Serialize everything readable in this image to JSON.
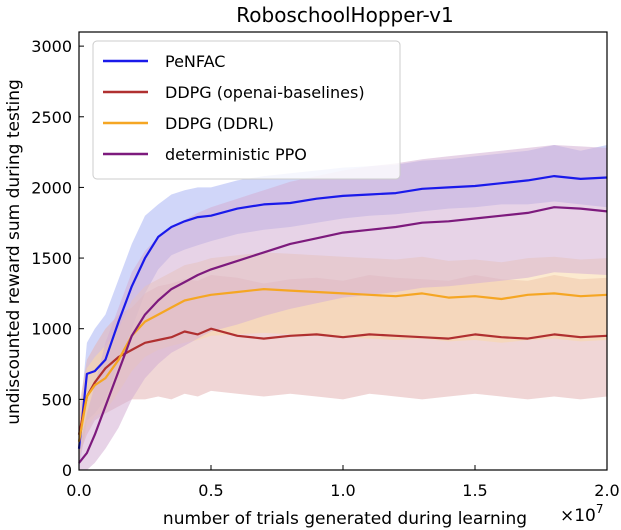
{
  "chart_data": {
    "type": "line",
    "title": "RoboschoolHopper-v1",
    "xlabel": "number of trials generated during learning",
    "ylabel": "undiscounted reward sum during testing",
    "x_multiplier_label": "×10^7",
    "x_multiplier": {
      "base": "×10",
      "exp": "7"
    },
    "xlim": [
      0.0,
      2.0
    ],
    "ylim": [
      0,
      3100
    ],
    "xticks": [
      0.0,
      0.5,
      1.0,
      1.5,
      2.0
    ],
    "xtick_labels": [
      "0.0",
      "0.5",
      "1.0",
      "1.5",
      "2.0"
    ],
    "yticks": [
      0,
      500,
      1000,
      1500,
      2000,
      2500,
      3000
    ],
    "ytick_labels": [
      "0",
      "500",
      "1000",
      "1500",
      "2000",
      "2500",
      "3000"
    ],
    "grid": false,
    "legend_position": "top-left",
    "series": [
      {
        "name": "PeNFAC",
        "color": "#1a1aea",
        "band_color": "#aab4f4",
        "x": [
          0.0,
          0.03,
          0.06,
          0.1,
          0.15,
          0.2,
          0.25,
          0.3,
          0.35,
          0.4,
          0.45,
          0.5,
          0.6,
          0.7,
          0.8,
          0.9,
          1.0,
          1.1,
          1.2,
          1.3,
          1.4,
          1.5,
          1.6,
          1.7,
          1.8,
          1.9,
          2.0
        ],
        "y": [
          150,
          680,
          700,
          780,
          1050,
          1300,
          1500,
          1650,
          1720,
          1760,
          1790,
          1800,
          1850,
          1880,
          1890,
          1920,
          1940,
          1950,
          1960,
          1990,
          2000,
          2010,
          2030,
          2050,
          2080,
          2060,
          2070
        ],
        "lower": [
          0,
          350,
          400,
          500,
          750,
          1000,
          1250,
          1420,
          1520,
          1560,
          1590,
          1620,
          1670,
          1700,
          1720,
          1750,
          1780,
          1800,
          1810,
          1830,
          1850,
          1860,
          1880,
          1880,
          1900,
          1880,
          1860
        ],
        "upper": [
          300,
          900,
          1000,
          1100,
          1350,
          1600,
          1800,
          1880,
          1950,
          1980,
          2000,
          2000,
          2050,
          2080,
          2100,
          2120,
          2140,
          2150,
          2160,
          2190,
          2200,
          2220,
          2240,
          2260,
          2300,
          2260,
          2300
        ]
      },
      {
        "name": "DDPG (openai-baselines)",
        "color": "#b03030",
        "band_color": "#e4b4b4",
        "x": [
          0.0,
          0.03,
          0.06,
          0.1,
          0.15,
          0.2,
          0.25,
          0.3,
          0.35,
          0.4,
          0.45,
          0.5,
          0.6,
          0.7,
          0.8,
          0.9,
          1.0,
          1.1,
          1.2,
          1.3,
          1.4,
          1.5,
          1.6,
          1.7,
          1.8,
          1.9,
          2.0
        ],
        "y": [
          250,
          520,
          620,
          720,
          800,
          850,
          900,
          920,
          940,
          980,
          960,
          1000,
          950,
          930,
          950,
          960,
          940,
          960,
          950,
          940,
          930,
          960,
          940,
          930,
          960,
          940,
          950
        ],
        "lower": [
          100,
          250,
          350,
          400,
          450,
          500,
          500,
          520,
          500,
          540,
          520,
          560,
          540,
          520,
          540,
          520,
          500,
          540,
          520,
          500,
          520,
          540,
          520,
          500,
          520,
          500,
          520
        ],
        "upper": [
          450,
          780,
          880,
          1000,
          1100,
          1150,
          1250,
          1300,
          1320,
          1350,
          1340,
          1380,
          1360,
          1320,
          1350,
          1360,
          1340,
          1380,
          1360,
          1350,
          1340,
          1380,
          1350,
          1340,
          1380,
          1350,
          1360
        ]
      },
      {
        "name": "DDPG (DDRL)",
        "color": "#f5a623",
        "band_color": "#f9d9a8",
        "x": [
          0.0,
          0.03,
          0.06,
          0.1,
          0.15,
          0.2,
          0.25,
          0.3,
          0.35,
          0.4,
          0.45,
          0.5,
          0.6,
          0.7,
          0.8,
          0.9,
          1.0,
          1.1,
          1.2,
          1.3,
          1.4,
          1.5,
          1.6,
          1.7,
          1.8,
          1.9,
          2.0
        ],
        "y": [
          200,
          520,
          600,
          650,
          780,
          950,
          1050,
          1100,
          1150,
          1200,
          1220,
          1240,
          1260,
          1280,
          1270,
          1260,
          1250,
          1240,
          1230,
          1250,
          1220,
          1230,
          1210,
          1240,
          1250,
          1230,
          1240
        ],
        "lower": [
          50,
          300,
          380,
          420,
          550,
          700,
          800,
          850,
          880,
          900,
          920,
          950,
          960,
          970,
          960,
          950,
          940,
          930,
          920,
          930,
          910,
          920,
          900,
          920,
          930,
          910,
          920
        ],
        "upper": [
          350,
          720,
          800,
          880,
          1000,
          1200,
          1300,
          1350,
          1400,
          1450,
          1470,
          1500,
          1520,
          1540,
          1530,
          1520,
          1510,
          1500,
          1490,
          1510,
          1480,
          1490,
          1470,
          1500,
          1510,
          1490,
          1500
        ]
      },
      {
        "name": "deterministic PPO",
        "color": "#7d1a7d",
        "band_color": "#d4aed4",
        "x": [
          0.0,
          0.03,
          0.06,
          0.1,
          0.15,
          0.2,
          0.25,
          0.3,
          0.35,
          0.4,
          0.45,
          0.5,
          0.6,
          0.7,
          0.8,
          0.9,
          1.0,
          1.1,
          1.2,
          1.3,
          1.4,
          1.5,
          1.6,
          1.7,
          1.8,
          1.9,
          2.0
        ],
        "y": [
          50,
          120,
          250,
          450,
          700,
          950,
          1100,
          1200,
          1280,
          1330,
          1380,
          1420,
          1480,
          1540,
          1600,
          1640,
          1680,
          1700,
          1720,
          1750,
          1760,
          1780,
          1800,
          1820,
          1860,
          1850,
          1830
        ],
        "lower": [
          0,
          0,
          50,
          150,
          300,
          500,
          650,
          750,
          830,
          880,
          930,
          980,
          1030,
          1090,
          1140,
          1180,
          1220,
          1240,
          1260,
          1290,
          1300,
          1320,
          1340,
          1360,
          1400,
          1390,
          1380
        ],
        "upper": [
          150,
          400,
          600,
          900,
          1150,
          1400,
          1550,
          1650,
          1720,
          1770,
          1820,
          1860,
          1920,
          1980,
          2040,
          2080,
          2120,
          2150,
          2170,
          2200,
          2220,
          2240,
          2260,
          2280,
          2300,
          2290,
          2280
        ]
      }
    ]
  }
}
